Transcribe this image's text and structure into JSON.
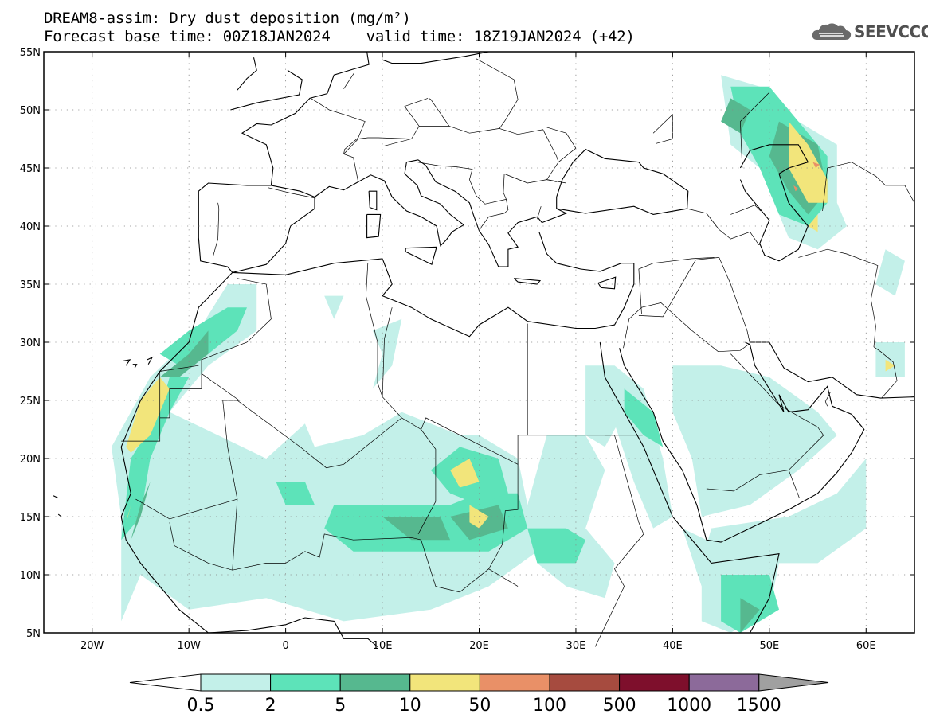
{
  "title": {
    "line1": "DREAM8-assim: Dry dust deposition (mg/m²)",
    "line2": "Forecast base time: 00Z18JAN2024    valid time: 18Z19JAN2024 (+42)"
  },
  "logo": {
    "text": "SEEVCCC",
    "icon": "cloud-logo-icon"
  },
  "map": {
    "lon_range": [
      -25,
      65
    ],
    "lat_range": [
      5,
      55
    ],
    "lat_labels": [
      "55N",
      "50N",
      "45N",
      "40N",
      "35N",
      "30N",
      "25N",
      "20N",
      "15N",
      "10N",
      "5N"
    ],
    "lat_values": [
      55,
      50,
      45,
      40,
      35,
      30,
      25,
      20,
      15,
      10,
      5
    ],
    "lon_labels": [
      "20W",
      "10W",
      "0",
      "10E",
      "20E",
      "30E",
      "40E",
      "50E",
      "60E"
    ],
    "lon_values": [
      -20,
      -10,
      0,
      10,
      20,
      30,
      40,
      50,
      60
    ],
    "gridlines": "dotted"
  },
  "colorbar": {
    "labels": [
      "0.5",
      "2",
      "5",
      "10",
      "50",
      "100",
      "500",
      "1000",
      "1500"
    ],
    "colors": [
      "#c3f0e9",
      "#5de3b9",
      "#56b88f",
      "#f2e57b",
      "#e99067",
      "#a64b3f",
      "#7e0f2c",
      "#8c6a9a"
    ],
    "low_arrow_color": "#ffffff",
    "high_arrow_color": "#a0a0a0"
  },
  "levels": {
    "l1": "#c3f0e9",
    "l2": "#5de3b9",
    "l3": "#56b88f",
    "l4": "#f2e57b",
    "l5": "#e99067"
  }
}
